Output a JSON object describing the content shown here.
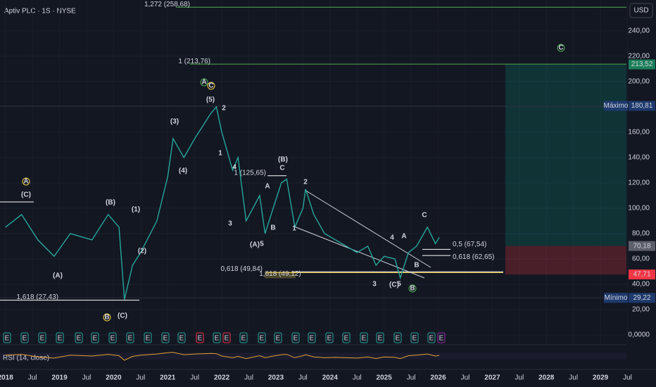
{
  "chart_data": {
    "type": "line",
    "title": "Aptiv PLC · 1S · NYSE",
    "currency": "USD",
    "x": [
      2018.0,
      2018.3,
      2018.6,
      2018.9,
      2019.2,
      2019.6,
      2019.9,
      2020.1,
      2020.2,
      2020.35,
      2020.5,
      2020.8,
      2021.0,
      2021.1,
      2021.3,
      2021.5,
      2021.8,
      2021.9,
      2022.0,
      2022.2,
      2022.3,
      2022.45,
      2022.7,
      2022.8,
      2022.95,
      2023.1,
      2023.2,
      2023.35,
      2023.5,
      2023.55,
      2023.7,
      2023.9,
      2024.1,
      2024.3,
      2024.5,
      2024.7,
      2024.85,
      2025.0,
      2025.2,
      2025.3,
      2025.45,
      2025.6,
      2025.8,
      2025.95,
      2026.02
    ],
    "values": [
      85,
      95,
      75,
      62,
      80,
      75,
      95,
      85,
      28,
      55,
      65,
      90,
      125,
      155,
      140,
      155,
      175,
      180,
      160,
      130,
      140,
      90,
      110,
      80,
      100,
      120,
      123,
      85,
      100,
      115,
      95,
      80,
      75,
      70,
      65,
      70,
      55,
      62,
      60,
      45,
      65,
      70,
      85,
      72,
      77
    ],
    "color": "#26a69a",
    "rsi_label": "RSI (14, close)",
    "rsi_values": [
      55,
      60,
      45,
      38,
      55,
      50,
      60,
      52,
      25,
      48,
      55,
      62,
      70,
      72,
      58,
      62,
      66,
      64,
      50,
      40,
      48,
      35,
      52,
      40,
      50,
      58,
      60,
      40,
      52,
      58,
      45,
      40,
      42,
      40,
      38,
      45,
      35,
      45,
      42,
      35,
      52,
      55,
      62,
      50,
      54
    ],
    "rsi_ylim": [
      0,
      100
    ],
    "xlim": [
      2017.9,
      2029.48
    ],
    "ylim": [
      -7.8,
      264.4
    ],
    "xticks": [
      {
        "value": 2018,
        "label": "2018"
      },
      {
        "value": 2018.5,
        "label": "Jul"
      },
      {
        "value": 2019,
        "label": "2019"
      },
      {
        "value": 2019.5,
        "label": "Jul"
      },
      {
        "value": 2020,
        "label": "2020"
      },
      {
        "value": 2020.5,
        "label": "Jul"
      },
      {
        "value": 2021,
        "label": "2021"
      },
      {
        "value": 2021.5,
        "label": "Jul"
      },
      {
        "value": 2022,
        "label": "2022"
      },
      {
        "value": 2022.5,
        "label": "Jul"
      },
      {
        "value": 2023,
        "label": "2023"
      },
      {
        "value": 2023.5,
        "label": "Jul"
      },
      {
        "value": 2024,
        "label": "2024"
      },
      {
        "value": 2024.5,
        "label": "Jul"
      },
      {
        "value": 2025,
        "label": "2025"
      },
      {
        "value": 2025.5,
        "label": "Jul"
      },
      {
        "value": 2026,
        "label": "2026"
      },
      {
        "value": 2026.5,
        "label": "Jul"
      },
      {
        "value": 2027,
        "label": "2027"
      },
      {
        "value": 2027.5,
        "label": "Jul"
      },
      {
        "value": 2028,
        "label": "2028"
      },
      {
        "value": 2028.5,
        "label": "Jul"
      },
      {
        "value": 2029,
        "label": "2029"
      },
      {
        "value": 2029.5,
        "label": "Jul"
      }
    ],
    "yticks": [
      {
        "value": 240,
        "label": "240,00"
      },
      {
        "value": 220,
        "label": "220,00"
      },
      {
        "value": 200,
        "label": "200,00"
      },
      {
        "value": 180,
        "label": "180,00"
      },
      {
        "value": 160,
        "label": "160,00"
      },
      {
        "value": 140,
        "label": "140,00"
      },
      {
        "value": 120,
        "label": "120,00"
      },
      {
        "value": 100,
        "label": "100,00"
      },
      {
        "value": 80,
        "label": "80,00"
      },
      {
        "value": 60,
        "label": "60,00"
      },
      {
        "value": 40,
        "label": "40,00"
      },
      {
        "value": 20,
        "label": "20,00"
      },
      {
        "value": 0,
        "label": "0,0000"
      }
    ],
    "badges": [
      {
        "value": 213.52,
        "label": "213,52",
        "color": "#1b7f5a"
      },
      {
        "value": 180.81,
        "label": "180,81",
        "color": "#1e3a6e",
        "name": "Máximo"
      },
      {
        "value": 70.18,
        "label": "70,18",
        "color": "#5d606b"
      },
      {
        "value": 47.71,
        "label": "47,71",
        "color": "#f23645"
      },
      {
        "value": 29.22,
        "label": "29,22",
        "color": "#1e3a6e",
        "name": "Mínimo"
      }
    ],
    "levels": [
      {
        "label": "1,272 (258,68)",
        "value": 258.68,
        "color": "#4caf50"
      },
      {
        "label": "1 (213,76)",
        "value": 213.76,
        "color": "#4caf50"
      },
      {
        "label": "1 (125,65)",
        "value": 125.65,
        "color": "#ffffff"
      },
      {
        "label": "0,618 (49,84)",
        "value": 49.84,
        "color": "#ffffff"
      },
      {
        "label": "1,618 (49,12)",
        "value": 49.12,
        "color": "#f5d142"
      },
      {
        "label": "1,618 (27,43)",
        "value": 27.43,
        "color": "#ffffff"
      },
      {
        "label": "0,5 (67,54)",
        "value": 67.54,
        "color": "#ffffff"
      },
      {
        "label": "0,618 (62,65)",
        "value": 62.65,
        "color": "#ffffff"
      }
    ],
    "wave_labels": [
      "(C)",
      "A",
      "(A)",
      "(B)",
      "(1)",
      "(2)",
      "(C)",
      "B",
      "(3)",
      "(4)",
      "(5)",
      "A",
      "C",
      "2",
      "1",
      "4",
      "3",
      "5",
      "(A)",
      "A",
      "B",
      "(B)",
      "C",
      "2",
      "1",
      "3",
      "4",
      "A",
      "C",
      "B",
      "(C)",
      "5",
      "B",
      "C"
    ],
    "earnings_marker": "E"
  }
}
